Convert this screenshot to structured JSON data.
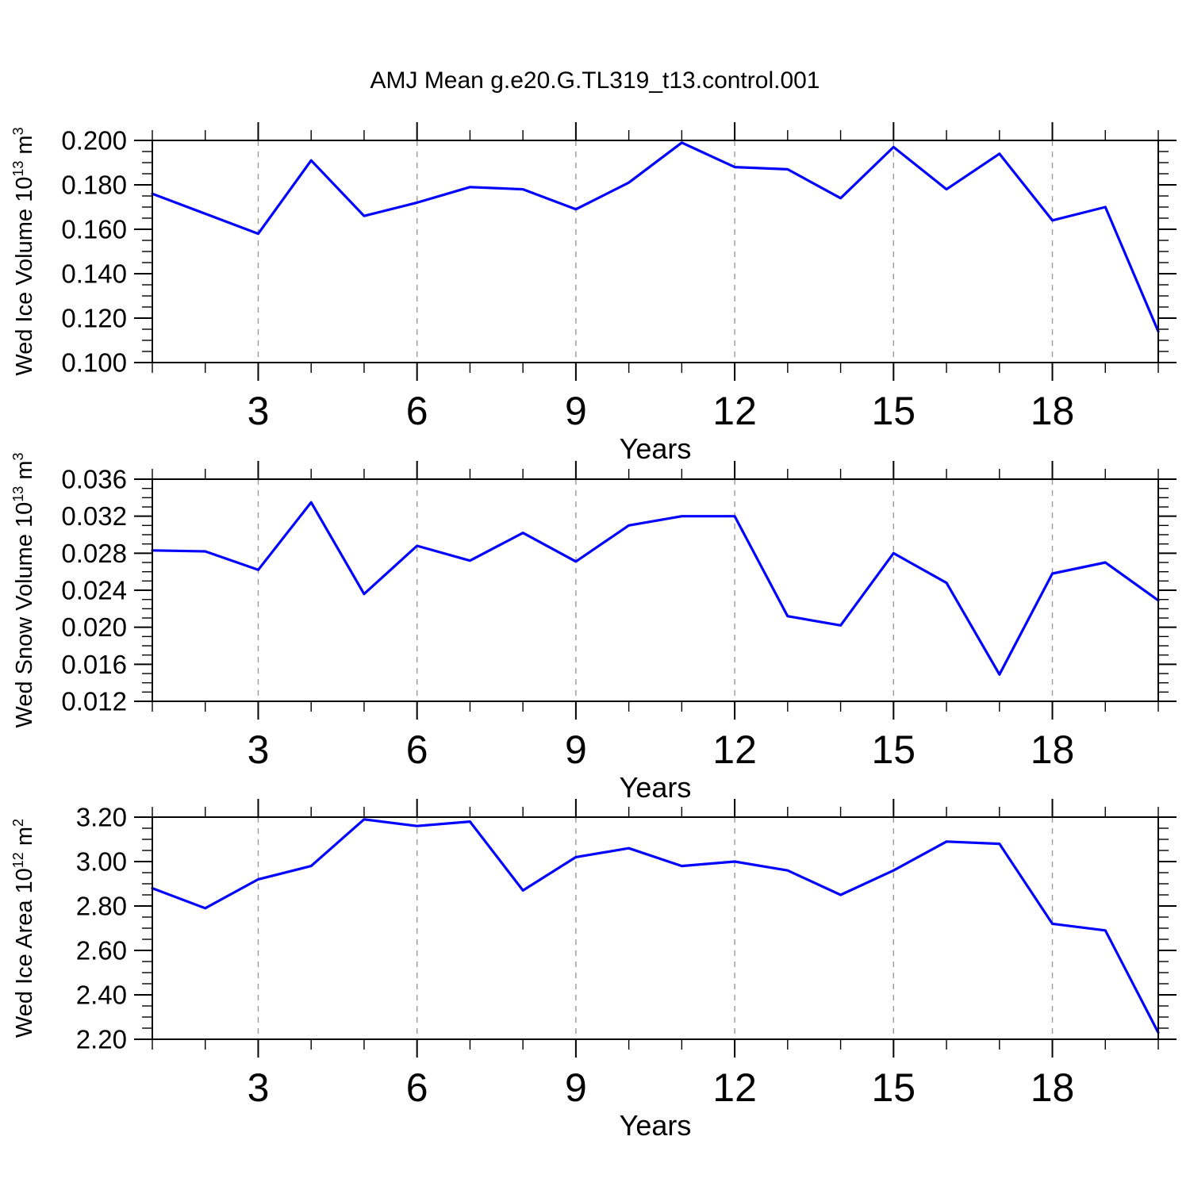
{
  "title": "AMJ Mean g.e20.G.TL319_t13.control.001",
  "colors": {
    "line": "#0000ff",
    "grid": "#999999",
    "axis": "#000000",
    "text": "#000000",
    "background": "#ffffff"
  },
  "chart_data": [
    {
      "type": "line",
      "name": "ice-volume",
      "xlabel": "Years",
      "ylabel_plain": "Wed Ice Volume 10^13 m^3",
      "ylabel_segments": [
        {
          "text": "Wed Ice Volume 10"
        },
        {
          "sup": "13"
        },
        {
          "text": " m"
        },
        {
          "sup": "3"
        }
      ],
      "x": [
        1,
        2,
        3,
        4,
        5,
        6,
        7,
        8,
        9,
        10,
        11,
        12,
        13,
        14,
        15,
        16,
        17,
        18,
        19,
        20
      ],
      "values": [
        0.176,
        0.167,
        0.158,
        0.191,
        0.166,
        0.172,
        0.179,
        0.178,
        0.169,
        0.181,
        0.199,
        0.188,
        0.187,
        0.174,
        0.197,
        0.178,
        0.194,
        0.164,
        0.17,
        0.114
      ],
      "xlim": [
        1,
        20
      ],
      "ylim": [
        0.1,
        0.2
      ],
      "x_major_ticks": [
        3,
        6,
        9,
        12,
        15,
        18
      ],
      "x_tick_labels": [
        "3",
        "6",
        "9",
        "12",
        "15",
        "18"
      ],
      "x_minor_step": 1,
      "y_major_step": 0.02,
      "y_minor_step": 0.005,
      "y_tick_labels": [
        "0.100",
        "0.120",
        "0.140",
        "0.160",
        "0.180",
        "0.200"
      ],
      "grid_x_major": true,
      "legend": "none"
    },
    {
      "type": "line",
      "name": "snow-volume",
      "xlabel": "Years",
      "ylabel_plain": "Wed Snow Volume 10^13 m^3",
      "ylabel_segments": [
        {
          "text": "Wed Snow Volume 10"
        },
        {
          "sup": "13"
        },
        {
          "text": " m"
        },
        {
          "sup": "3"
        }
      ],
      "x": [
        1,
        2,
        3,
        4,
        5,
        6,
        7,
        8,
        9,
        10,
        11,
        12,
        13,
        14,
        15,
        16,
        17,
        18,
        19,
        20
      ],
      "values": [
        0.0283,
        0.0282,
        0.0262,
        0.0335,
        0.0236,
        0.0288,
        0.0272,
        0.0302,
        0.0271,
        0.031,
        0.032,
        0.032,
        0.0212,
        0.0202,
        0.028,
        0.0248,
        0.0149,
        0.0258,
        0.027,
        0.0229
      ],
      "xlim": [
        1,
        20
      ],
      "ylim": [
        0.012,
        0.036
      ],
      "x_major_ticks": [
        3,
        6,
        9,
        12,
        15,
        18
      ],
      "x_tick_labels": [
        "3",
        "6",
        "9",
        "12",
        "15",
        "18"
      ],
      "x_minor_step": 1,
      "y_major_step": 0.004,
      "y_minor_step": 0.001,
      "y_tick_labels": [
        "0.012",
        "0.016",
        "0.020",
        "0.024",
        "0.028",
        "0.032",
        "0.036"
      ],
      "grid_x_major": true,
      "legend": "none"
    },
    {
      "type": "line",
      "name": "ice-area",
      "xlabel": "Years",
      "ylabel_plain": "Wed Ice Area 10^12 m^2",
      "ylabel_segments": [
        {
          "text": "Wed Ice Area 10"
        },
        {
          "sup": "12"
        },
        {
          "text": " m"
        },
        {
          "sup": "2"
        }
      ],
      "x": [
        1,
        2,
        3,
        4,
        5,
        6,
        7,
        8,
        9,
        10,
        11,
        12,
        13,
        14,
        15,
        16,
        17,
        18,
        19,
        20
      ],
      "values": [
        2.88,
        2.79,
        2.92,
        2.98,
        3.19,
        3.16,
        3.18,
        2.87,
        3.02,
        3.06,
        2.98,
        3.0,
        2.96,
        2.85,
        2.96,
        3.09,
        3.08,
        2.72,
        2.69,
        2.23
      ],
      "xlim": [
        1,
        20
      ],
      "ylim": [
        2.2,
        3.2
      ],
      "x_major_ticks": [
        3,
        6,
        9,
        12,
        15,
        18
      ],
      "x_tick_labels": [
        "3",
        "6",
        "9",
        "12",
        "15",
        "18"
      ],
      "x_minor_step": 1,
      "y_major_step": 0.2,
      "y_minor_step": 0.05,
      "y_tick_labels": [
        "2.20",
        "2.40",
        "2.60",
        "2.80",
        "3.00",
        "3.20"
      ],
      "grid_x_major": true,
      "legend": "none"
    }
  ]
}
